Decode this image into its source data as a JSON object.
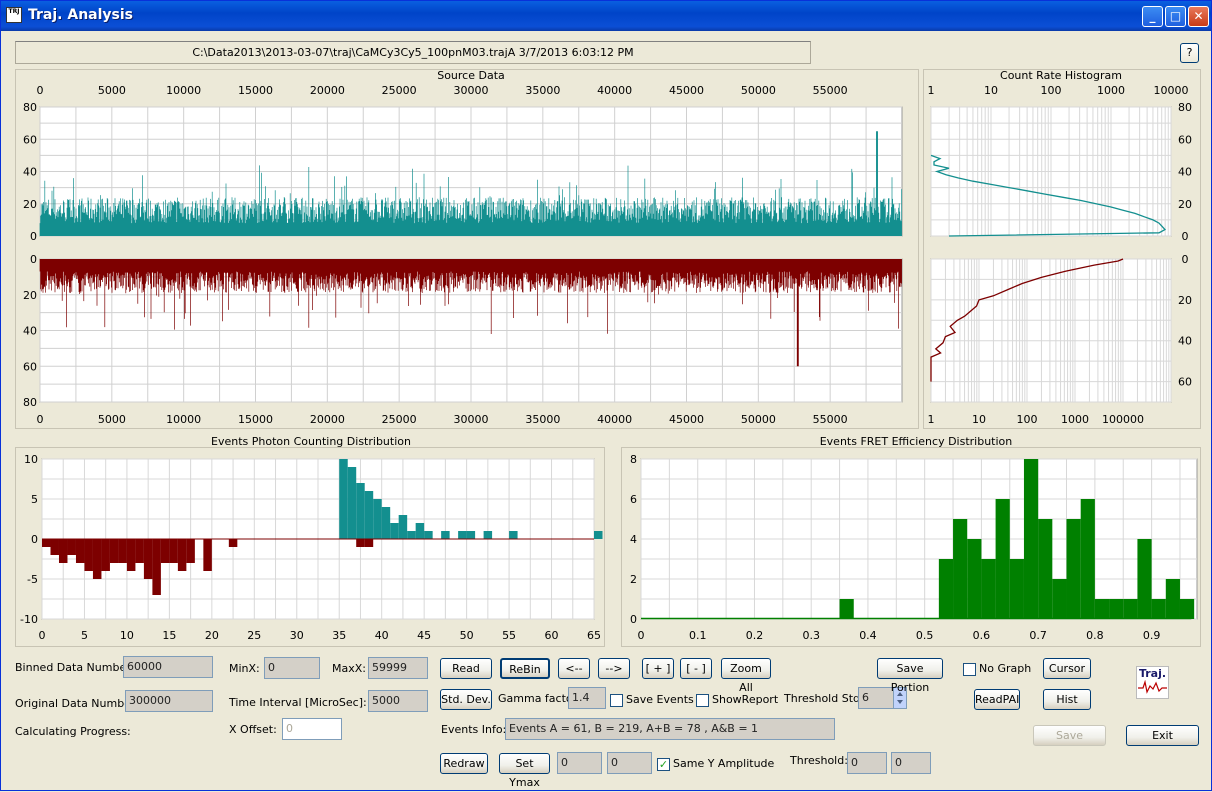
{
  "window": {
    "title": "Traj. Analysis",
    "app_icon_text": "TRJ",
    "minimize": "_",
    "maximize": "□",
    "close": "✕"
  },
  "file_path": "C:\\Data2013\\2013-03-07\\traj\\CaMCy3Cy5_100pnM03.trajA  3/7/2013 6:03:12 PM",
  "help_label": "?",
  "source_data": {
    "title": "Source Data",
    "top_x_ticks": [
      "0",
      "5000",
      "10000",
      "15000",
      "20000",
      "25000",
      "30000",
      "35000",
      "40000",
      "45000",
      "50000",
      "55000"
    ],
    "top_y_ticks": [
      "80",
      "60",
      "40",
      "20",
      "0"
    ],
    "bottom_x_ticks": [
      "0",
      "5000",
      "10000",
      "15000",
      "20000",
      "25000",
      "30000",
      "35000",
      "40000",
      "45000",
      "50000",
      "55000"
    ],
    "bottom_y_ticks": [
      "0",
      "20",
      "40",
      "60",
      "80"
    ],
    "top_color": "#138f8f",
    "bottom_color": "#7d0000"
  },
  "count_rate_histogram": {
    "title": "Count Rate Histogram",
    "top_x_ticks": [
      "1",
      "10",
      "100",
      "1000",
      "10000"
    ],
    "top_y_ticks": [
      "80",
      "60",
      "40",
      "20",
      "0"
    ],
    "bottom_x_ticks": [
      "1",
      "10",
      "100",
      "1000",
      "100000"
    ],
    "bottom_y_ticks": [
      "0",
      "20",
      "40",
      "60"
    ]
  },
  "events_photon": {
    "title": "Events Photon Counting Distribution",
    "x_ticks": [
      "0",
      "5",
      "10",
      "15",
      "20",
      "25",
      "30",
      "35",
      "40",
      "45",
      "50",
      "55",
      "60",
      "65"
    ],
    "y_ticks": [
      "10",
      "5",
      "0",
      "-5",
      "-10"
    ],
    "pos_color": "#138f8f",
    "neg_color": "#7d0000"
  },
  "events_fret": {
    "title": "Events FRET Efficiency Distribution",
    "x_ticks": [
      "0",
      "0.1",
      "0.2",
      "0.3",
      "0.4",
      "0.5",
      "0.6",
      "0.7",
      "0.8",
      "0.9"
    ],
    "y_ticks": [
      "8",
      "6",
      "4",
      "2",
      "0"
    ],
    "color": "#008000"
  },
  "controls": {
    "binned_label": "Binned Data Number:",
    "binned_value": "60000",
    "original_label": "Original Data Number:",
    "original_value": "300000",
    "progress_label": "Calculating Progress:",
    "minx_label": "MinX:",
    "minx_value": "0",
    "maxx_label": "MaxX:",
    "maxx_value": "59999",
    "interval_label": "Time Interval [MicroSec]:",
    "interval_value": "5000",
    "xoffset_label": "X Offset:",
    "xoffset_value": "0",
    "read": "Read",
    "rebin": "ReBin",
    "left": "<--",
    "right": "-->",
    "zoom_in": "[ + ]",
    "zoom_out": "[ - ]",
    "zoom_all": "Zoom All",
    "std_dev": "Std. Dev.",
    "gamma_label": "Gamma factor:",
    "gamma_value": "1.4",
    "save_events": "Save Events",
    "show_report": "ShowReport",
    "threshold_std_label": "Threshold Std.",
    "threshold_std_value": "6",
    "events_info_label": "Events Info:",
    "events_info_value": "Events A = 61, B = 219, A+B = 78 , A&B = 1",
    "redraw": "Redraw",
    "set_ymax": "Set Ymax",
    "ymax_a": "0",
    "ymax_b": "0",
    "same_y": "Same Y Amplitude",
    "same_y_checked": "✓",
    "threshold_label": "Threshold:",
    "threshold_a": "0",
    "threshold_b": "0",
    "save_portion": "Save Portion",
    "no_graph": "No Graph",
    "cursor": "Cursor",
    "read_pai": "ReadPAI",
    "hist": "Hist",
    "save": "Save",
    "exit": "Exit",
    "logo_text": "Traj."
  }
}
